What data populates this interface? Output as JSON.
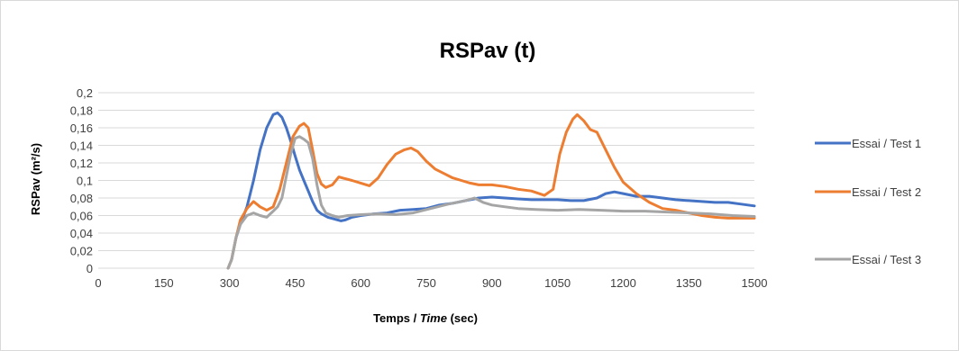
{
  "chart_data": {
    "type": "line",
    "title": "RSPav (t)",
    "xlabel_prefix": "Temps / ",
    "xlabel_italic": "Time",
    "xlabel_suffix": " (sec)",
    "ylabel": "RSPav (m²/s)",
    "xlim": [
      0,
      1500
    ],
    "ylim": [
      0,
      0.2
    ],
    "x_ticks": [
      "0",
      "150",
      "300",
      "450",
      "600",
      "750",
      "900",
      "1050",
      "1200",
      "1350",
      "1500"
    ],
    "y_ticks": [
      "0",
      "0,02",
      "0,04",
      "0,06",
      "0,08",
      "0,1",
      "0,12",
      "0,14",
      "0,16",
      "0,18",
      "0,2"
    ],
    "grid": true,
    "legend_position": "right",
    "series": [
      {
        "name": "Essai / Test 1",
        "color": "#4472c4",
        "x": [
          297,
          305,
          315,
          325,
          340,
          355,
          370,
          385,
          400,
          410,
          420,
          430,
          440,
          450,
          460,
          470,
          480,
          490,
          500,
          510,
          525,
          540,
          555,
          565,
          580,
          600,
          630,
          660,
          690,
          720,
          750,
          780,
          810,
          840,
          870,
          900,
          930,
          960,
          990,
          1020,
          1050,
          1080,
          1110,
          1140,
          1160,
          1180,
          1200,
          1230,
          1260,
          1290,
          1320,
          1350,
          1380,
          1410,
          1440,
          1470,
          1500
        ],
        "y": [
          0,
          0.01,
          0.035,
          0.05,
          0.07,
          0.1,
          0.135,
          0.16,
          0.175,
          0.177,
          0.172,
          0.16,
          0.145,
          0.128,
          0.112,
          0.1,
          0.088,
          0.076,
          0.066,
          0.062,
          0.058,
          0.056,
          0.054,
          0.055,
          0.058,
          0.06,
          0.062,
          0.063,
          0.066,
          0.067,
          0.068,
          0.072,
          0.074,
          0.077,
          0.08,
          0.081,
          0.08,
          0.079,
          0.078,
          0.078,
          0.078,
          0.077,
          0.077,
          0.08,
          0.085,
          0.087,
          0.085,
          0.082,
          0.082,
          0.08,
          0.078,
          0.077,
          0.076,
          0.075,
          0.075,
          0.073,
          0.071
        ]
      },
      {
        "name": "Essai / Test 2",
        "color": "#ed7d31",
        "x": [
          297,
          305,
          315,
          325,
          340,
          355,
          370,
          385,
          400,
          415,
          430,
          445,
          460,
          470,
          480,
          490,
          500,
          510,
          520,
          535,
          550,
          565,
          580,
          600,
          620,
          640,
          660,
          680,
          700,
          715,
          730,
          750,
          770,
          790,
          810,
          830,
          850,
          870,
          900,
          930,
          960,
          990,
          1020,
          1040,
          1055,
          1070,
          1085,
          1095,
          1110,
          1125,
          1140,
          1160,
          1180,
          1200,
          1230,
          1260,
          1290,
          1320,
          1350,
          1380,
          1410,
          1440,
          1470,
          1500
        ],
        "y": [
          0,
          0.01,
          0.035,
          0.055,
          0.068,
          0.076,
          0.07,
          0.066,
          0.07,
          0.09,
          0.12,
          0.15,
          0.162,
          0.165,
          0.16,
          0.135,
          0.108,
          0.096,
          0.092,
          0.095,
          0.104,
          0.102,
          0.1,
          0.097,
          0.094,
          0.103,
          0.118,
          0.13,
          0.135,
          0.137,
          0.133,
          0.122,
          0.113,
          0.108,
          0.103,
          0.1,
          0.097,
          0.095,
          0.095,
          0.093,
          0.09,
          0.088,
          0.083,
          0.09,
          0.13,
          0.155,
          0.17,
          0.175,
          0.168,
          0.158,
          0.155,
          0.135,
          0.115,
          0.098,
          0.085,
          0.075,
          0.068,
          0.066,
          0.063,
          0.06,
          0.058,
          0.057,
          0.057,
          0.057
        ]
      },
      {
        "name": "Essai / Test 3",
        "color": "#a5a5a5",
        "x": [
          297,
          305,
          315,
          325,
          340,
          355,
          370,
          385,
          400,
          410,
          420,
          430,
          440,
          450,
          460,
          470,
          480,
          490,
          500,
          510,
          520,
          535,
          550,
          570,
          600,
          640,
          680,
          720,
          760,
          800,
          840,
          860,
          880,
          900,
          930,
          960,
          1000,
          1050,
          1100,
          1150,
          1200,
          1250,
          1300,
          1350,
          1400,
          1450,
          1500
        ],
        "y": [
          0,
          0.01,
          0.035,
          0.05,
          0.06,
          0.063,
          0.06,
          0.058,
          0.065,
          0.07,
          0.08,
          0.105,
          0.13,
          0.148,
          0.15,
          0.147,
          0.143,
          0.125,
          0.095,
          0.072,
          0.063,
          0.06,
          0.058,
          0.06,
          0.061,
          0.062,
          0.061,
          0.063,
          0.068,
          0.073,
          0.077,
          0.08,
          0.075,
          0.072,
          0.07,
          0.068,
          0.067,
          0.066,
          0.067,
          0.066,
          0.065,
          0.065,
          0.064,
          0.063,
          0.062,
          0.06,
          0.059
        ]
      }
    ]
  }
}
